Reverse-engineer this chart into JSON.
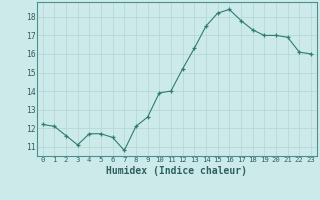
{
  "x": [
    0,
    1,
    2,
    3,
    4,
    5,
    6,
    7,
    8,
    9,
    10,
    11,
    12,
    13,
    14,
    15,
    16,
    17,
    18,
    19,
    20,
    21,
    22,
    23
  ],
  "y": [
    12.2,
    12.1,
    11.6,
    11.1,
    11.7,
    11.7,
    11.5,
    10.8,
    12.1,
    12.6,
    13.9,
    14.0,
    15.2,
    16.3,
    17.5,
    18.2,
    18.4,
    17.8,
    17.3,
    17.0,
    17.0,
    16.9,
    16.1,
    16.0
  ],
  "xlabel": "Humidex (Indice chaleur)",
  "ylim": [
    10.5,
    18.8
  ],
  "xlim": [
    -0.5,
    23.5
  ],
  "yticks": [
    11,
    12,
    13,
    14,
    15,
    16,
    17,
    18
  ],
  "xticks": [
    0,
    1,
    2,
    3,
    4,
    5,
    6,
    7,
    8,
    9,
    10,
    11,
    12,
    13,
    14,
    15,
    16,
    17,
    18,
    19,
    20,
    21,
    22,
    23
  ],
  "line_color": "#2e7d6e",
  "marker": "+",
  "bg_color": "#cdeaea",
  "grid_color": "#b8d8d8",
  "font_color": "#2e6060",
  "spine_color": "#4a9090"
}
